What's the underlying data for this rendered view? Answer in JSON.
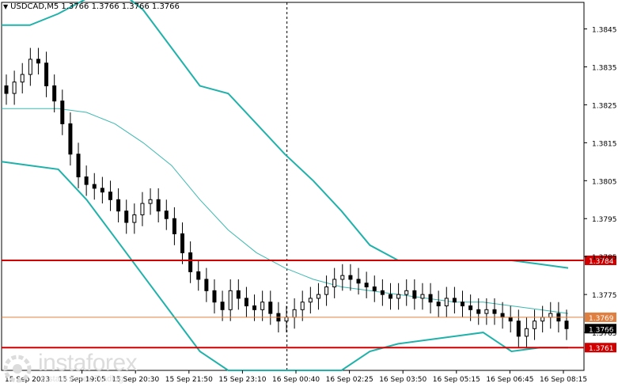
{
  "header": {
    "symbol_line": "USDCAD,M5  1.3766 1.3766 1.3766 1.3766"
  },
  "watermark": {
    "brand": "instaforex",
    "tagline": "Instant Forex Trading"
  },
  "colors": {
    "background": "#ffffff",
    "axis": "#000000",
    "candle": "#000000",
    "band": "#20b2aa",
    "band_mid": "#3cb8b0",
    "resistance": "#d00000",
    "pivot": "#e08040",
    "current_bg": "#000000",
    "level_bg": "#d00000"
  },
  "chart_data": {
    "type": "candlestick",
    "title": "USDCAD,M5",
    "ylim": [
      1.3755,
      1.3852
    ],
    "y_ticks": [
      "1.3845",
      "1.3835",
      "1.3825",
      "1.3815",
      "1.3805",
      "1.3795",
      "1.3785",
      "1.3775",
      "1.3765"
    ],
    "x_ticks": [
      "15 Sep 2023",
      "15 Sep 19:05",
      "15 Sep 20:30",
      "15 Sep 21:50",
      "15 Sep 23:10",
      "16 Sep 00:40",
      "16 Sep 02:25",
      "16 Sep 03:50",
      "16 Sep 05:15",
      "16 Sep 06:45",
      "16 Sep 08:15"
    ],
    "horizontal_levels": [
      {
        "value": 1.3784,
        "label": "1.3784",
        "style": "red"
      },
      {
        "value": 1.3769,
        "label": "1.3769",
        "style": "orange"
      },
      {
        "value": 1.3761,
        "label": "1.3761",
        "style": "red"
      }
    ],
    "current_price": {
      "value": 1.3766,
      "label": "1.3766"
    },
    "crosshair_x_fraction": 0.49,
    "close": [
      1.3828,
      1.3831,
      1.3833,
      1.3837,
      1.3836,
      1.383,
      1.3826,
      1.382,
      1.3812,
      1.3806,
      1.3804,
      1.3803,
      1.3802,
      1.38,
      1.3797,
      1.3794,
      1.3796,
      1.3799,
      1.38,
      1.3797,
      1.3795,
      1.3791,
      1.3786,
      1.3781,
      1.3779,
      1.3776,
      1.3773,
      1.3771,
      1.3776,
      1.3774,
      1.3772,
      1.3771,
      1.3773,
      1.377,
      1.3768,
      1.3769,
      1.3771,
      1.3773,
      1.3774,
      1.3775,
      1.3777,
      1.3779,
      1.378,
      1.3779,
      1.3778,
      1.3777,
      1.3776,
      1.3775,
      1.3774,
      1.3775,
      1.3776,
      1.3774,
      1.3775,
      1.3773,
      1.3772,
      1.3774,
      1.3773,
      1.3772,
      1.3771,
      1.377,
      1.3771,
      1.377,
      1.3769,
      1.3768,
      1.3764,
      1.3766,
      1.3768,
      1.3769,
      1.377,
      1.3768,
      1.3766
    ],
    "bands": {
      "upper": [
        1.3846,
        1.3846,
        1.3849,
        1.3853,
        1.3856,
        1.385,
        1.384,
        1.383,
        1.3828,
        1.382,
        1.3812,
        1.3805,
        1.3797,
        1.3788,
        1.3784,
        1.3784,
        1.3784,
        1.3784,
        1.3784,
        1.3783,
        1.3782
      ],
      "middle": [
        1.3824,
        1.3824,
        1.3824,
        1.3823,
        1.382,
        1.3815,
        1.3809,
        1.38,
        1.3792,
        1.3786,
        1.3782,
        1.3779,
        1.3777,
        1.3776,
        1.3775,
        1.3774,
        1.3773,
        1.3773,
        1.3772,
        1.3771,
        1.377
      ],
      "lower": [
        1.381,
        1.3809,
        1.3808,
        1.38,
        1.379,
        1.378,
        1.377,
        1.376,
        1.3755,
        1.3755,
        1.3755,
        1.3755,
        1.3755,
        1.376,
        1.3762,
        1.3763,
        1.3764,
        1.3765,
        1.376,
        1.3761,
        1.3761
      ]
    }
  }
}
